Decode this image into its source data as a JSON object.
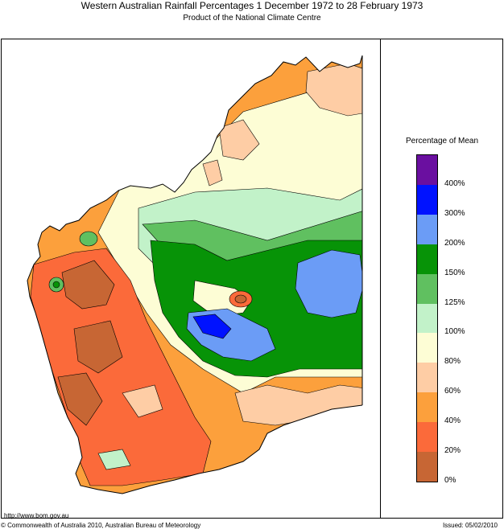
{
  "header": {
    "title": "Western Australian Rainfall Percentages 1 December 1972 to 28 February 1973",
    "subtitle": "Product of the National Climate Centre"
  },
  "legend": {
    "title": "Percentage of Mean",
    "labels": [
      "400%",
      "300%",
      "200%",
      "150%",
      "125%",
      "100%",
      "80%",
      "60%",
      "40%",
      "20%",
      "0%"
    ],
    "colors": [
      "#6a0fa0",
      "#0012ff",
      "#6b9cf6",
      "#079307",
      "#60c060",
      "#c2f2c9",
      "#fdfdd5",
      "#fecda5",
      "#fca03c",
      "#fb6a3a",
      "#c76634"
    ]
  },
  "footer": {
    "url": "http://www.bom.gov.au",
    "copyright": "© Commonwealth of Australia 2010, Australian Bureau of Meteorology",
    "issued": "Issued: 05/02/2010"
  }
}
